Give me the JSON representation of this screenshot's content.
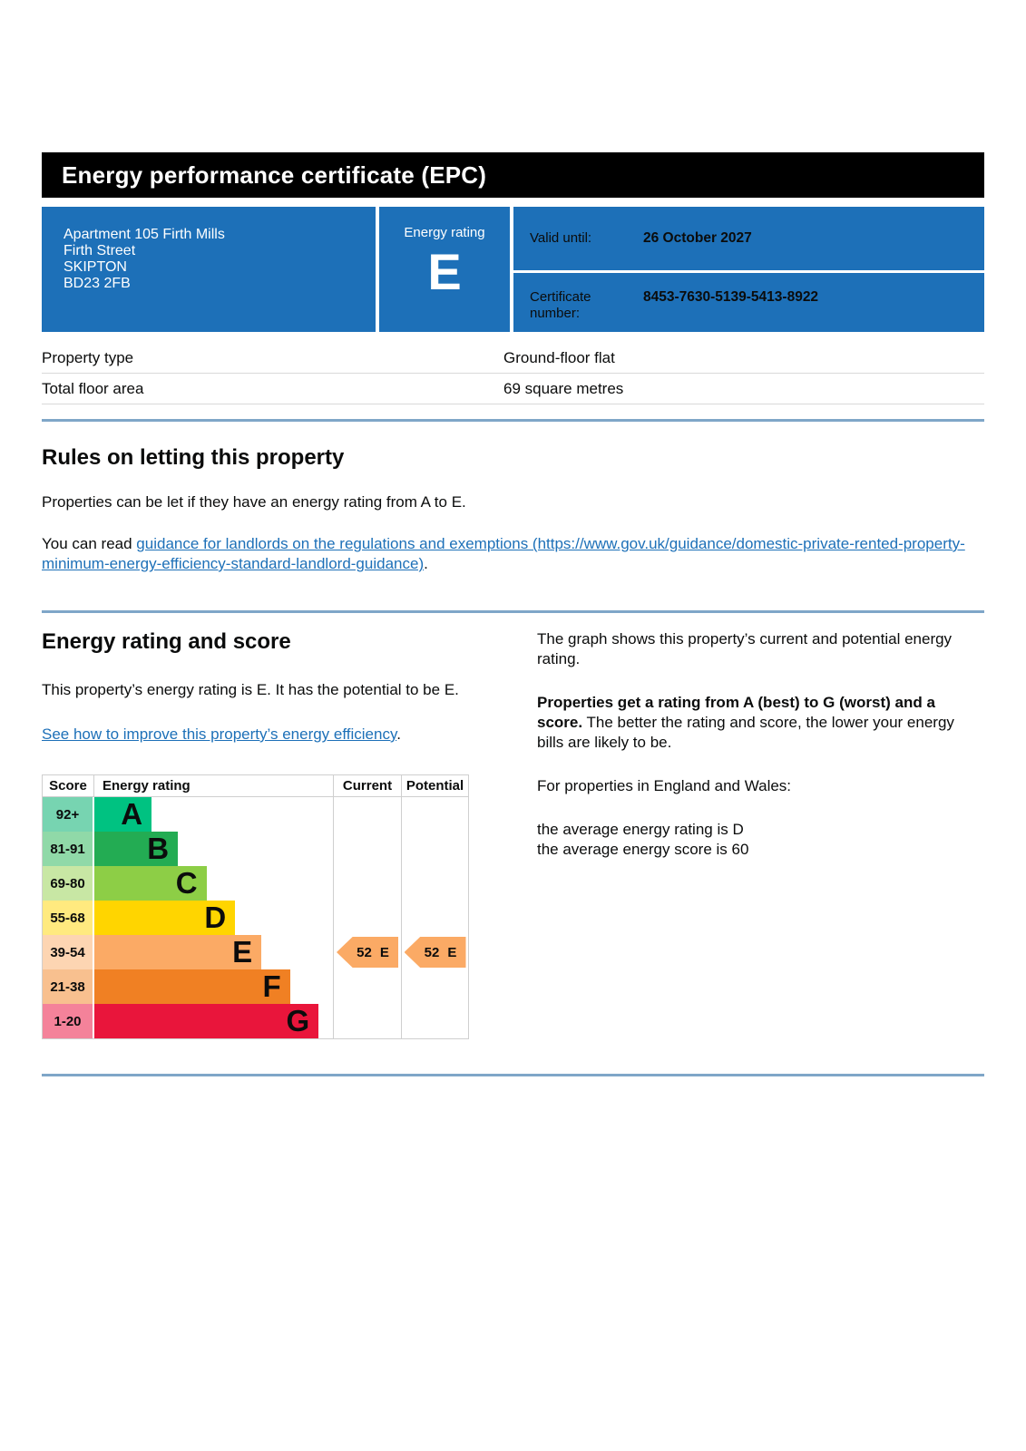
{
  "banner": {
    "title": "Energy performance certificate (EPC)"
  },
  "summary": {
    "address_lines": [
      "Apartment 105 Firth Mills",
      "Firth Street",
      "SKIPTON",
      "BD23 2FB"
    ],
    "energy_rating_label": "Energy rating",
    "energy_rating": "E",
    "valid_until_label": "Valid until:",
    "valid_until_value": "26 October 2027",
    "certificate_number_label": "Certificate number:",
    "certificate_number_value": "8453-7630-5139-5413-8922"
  },
  "property_facts": {
    "rows": [
      {
        "label": "Property type",
        "value": "Ground-floor flat"
      },
      {
        "label": "Total floor area",
        "value": "69 square metres"
      }
    ]
  },
  "rules_section": {
    "heading": "Rules on letting this property",
    "para1": "Properties can be let if they have an energy rating from A to E.",
    "para2_prefix": "You can read ",
    "link_text": "guidance for landlords on the regulations and exemptions (https://www.gov.uk/guidance/domestic-private-rented-property-minimum-energy-efficiency-standard-landlord-guidance)",
    "para2_suffix": "."
  },
  "rating_section": {
    "heading": "Energy rating and score",
    "para1": "This property’s energy rating is E. It has the potential to be E.",
    "improve_link_text": "See how to improve this property’s energy efficiency",
    "improve_link_suffix": "."
  },
  "graph_info": {
    "para1": "The graph shows this property’s current and potential energy rating.",
    "para2_bold": "Properties get a rating from A (best) to G (worst) and a score.",
    "para2_rest": " The better the rating and score, the lower your energy bills are likely to be.",
    "para3": "For properties in England and Wales:",
    "avg_rating_line": "the average energy rating is D",
    "avg_score_line": "the average energy score is 60"
  },
  "chart": {
    "headers": {
      "score": "Score",
      "rating": "Energy rating",
      "current": "Current",
      "potential": "Potential"
    },
    "bands": [
      {
        "score": "92+",
        "letter": "A",
        "color": "#00c281",
        "tint": "#77d4b1",
        "width_pct": 24
      },
      {
        "score": "81-91",
        "letter": "B",
        "color": "#23ac53",
        "tint": "#90d9a8",
        "width_pct": 35
      },
      {
        "score": "69-80",
        "letter": "C",
        "color": "#8dce46",
        "tint": "#c8e7a4",
        "width_pct": 47
      },
      {
        "score": "55-68",
        "letter": "D",
        "color": "#ffd500",
        "tint": "#ffea7f",
        "width_pct": 59
      },
      {
        "score": "39-54",
        "letter": "E",
        "color": "#fbaa65",
        "tint": "#fdd5b2",
        "width_pct": 70
      },
      {
        "score": "21-38",
        "letter": "F",
        "color": "#f08023",
        "tint": "#f8c08f",
        "width_pct": 82
      },
      {
        "score": "1-20",
        "letter": "G",
        "color": "#e9153b",
        "tint": "#f4829a",
        "width_pct": 94
      }
    ],
    "arrow_color": "#fbaa65",
    "current": {
      "value": "52",
      "letter": "E",
      "band_index": 4
    },
    "potential": {
      "value": "52",
      "letter": "E",
      "band_index": 4
    }
  },
  "chart_data": {
    "type": "bar",
    "title": "Energy rating and score",
    "columns": [
      "Score",
      "Energy rating",
      "Current",
      "Potential"
    ],
    "categories": [
      "A",
      "B",
      "C",
      "D",
      "E",
      "F",
      "G"
    ],
    "score_ranges": [
      "92+",
      "81-91",
      "69-80",
      "55-68",
      "39-54",
      "21-38",
      "1-20"
    ],
    "bar_width_pct": [
      24,
      35,
      47,
      59,
      70,
      82,
      94
    ],
    "band_colors": [
      "#00c281",
      "#23ac53",
      "#8dce46",
      "#ffd500",
      "#fbaa65",
      "#f08023",
      "#e9153b"
    ],
    "current": {
      "score": 52,
      "rating": "E"
    },
    "potential": {
      "score": 52,
      "rating": "E"
    },
    "legend_position": "none",
    "grid": false
  },
  "colors": {
    "banner_bg": "#000000",
    "panel_blue": "#1d70b8",
    "link_blue": "#1d70b8",
    "section_rule": "#7fa6c8",
    "row_divider": "#d9d9d9",
    "text": "#0b0c0c"
  }
}
